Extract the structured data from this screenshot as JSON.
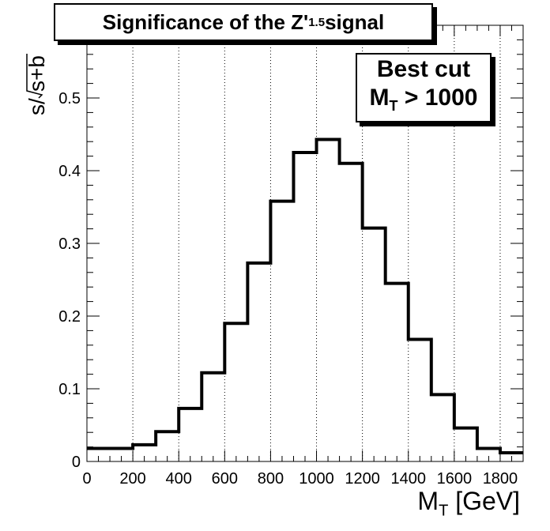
{
  "chart_data": {
    "type": "bar",
    "title": {
      "prefix": "Significance of the Z'",
      "subscript": "1.5",
      "suffix": " signal"
    },
    "annotation": {
      "line1": "Best cut",
      "line2_main": "M",
      "line2_sub": "T",
      "line2_rest": " > 1000"
    },
    "xlabel": {
      "main": "M",
      "sub": "T",
      "rest": " [GeV]"
    },
    "ylabel": {
      "prefix": "s/",
      "radicand": "s+b"
    },
    "xlim": [
      0,
      1900
    ],
    "ylim": [
      0,
      0.6
    ],
    "x_ticks": [
      "0",
      "200",
      "400",
      "600",
      "800",
      "1000",
      "1200",
      "1400",
      "1600",
      "1800"
    ],
    "y_ticks": [
      "0",
      "0.1",
      "0.2",
      "0.3",
      "0.4",
      "0.5"
    ],
    "grid_x": true,
    "bin_width": 100,
    "bin_lows": [
      0,
      100,
      200,
      300,
      400,
      500,
      600,
      700,
      800,
      900,
      1000,
      1100,
      1200,
      1300,
      1400,
      1500,
      1600,
      1700,
      1800
    ],
    "values": [
      0.018,
      0.018,
      0.023,
      0.041,
      0.073,
      0.122,
      0.19,
      0.273,
      0.358,
      0.425,
      0.443,
      0.41,
      0.321,
      0.245,
      0.168,
      0.092,
      0.046,
      0.018,
      0.012
    ]
  }
}
